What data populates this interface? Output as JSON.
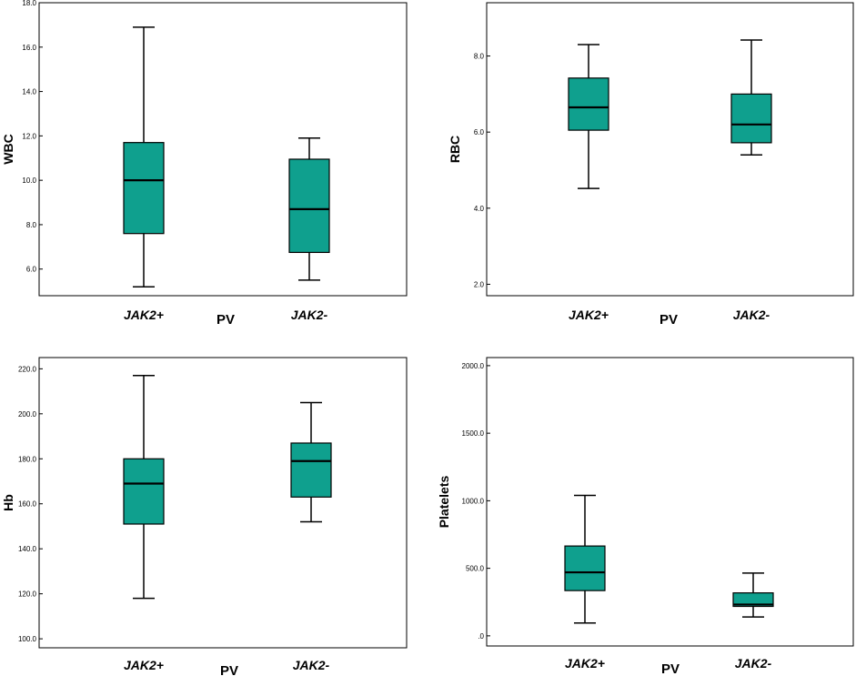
{
  "colors": {
    "box_fill": "#0fa08e",
    "stroke": "#000000",
    "background": "#ffffff"
  },
  "chart_data": [
    {
      "type": "boxplot",
      "title": "",
      "xlabel": "PV",
      "ylabel": "WBC",
      "categories": [
        "JAK2+",
        "JAK2-"
      ],
      "ylim": [
        4.8,
        18.0
      ],
      "yticks": [
        6.0,
        8.0,
        10.0,
        12.0,
        14.0,
        16.0,
        18.0
      ],
      "ytick_labels": [
        "6.0",
        "8.0",
        "10.0",
        "12.0",
        "14.0",
        "16.0",
        "18.0"
      ],
      "boxes": [
        {
          "min": 5.2,
          "q1": 7.6,
          "median": 10.0,
          "q3": 11.7,
          "max": 16.9
        },
        {
          "min": 5.5,
          "q1": 6.75,
          "median": 8.7,
          "q3": 10.95,
          "max": 11.9
        }
      ]
    },
    {
      "type": "boxplot",
      "title": "",
      "xlabel": "PV",
      "ylabel": "RBC",
      "categories": [
        "JAK2+",
        "JAK2-"
      ],
      "ylim": [
        1.7,
        9.4
      ],
      "yticks": [
        2.0,
        4.0,
        6.0,
        8.0
      ],
      "ytick_labels": [
        "2.0",
        "4.0",
        "6.0",
        "8.0"
      ],
      "boxes": [
        {
          "min": 4.52,
          "q1": 6.05,
          "median": 6.65,
          "q3": 7.42,
          "max": 8.3
        },
        {
          "min": 5.4,
          "q1": 5.72,
          "median": 6.2,
          "q3": 7.0,
          "max": 8.42
        }
      ]
    },
    {
      "type": "boxplot",
      "title": "",
      "xlabel": "PV",
      "ylabel": "Hb",
      "categories": [
        "JAK2+",
        "JAK2-"
      ],
      "ylim": [
        96,
        225
      ],
      "yticks": [
        100,
        120,
        140,
        160,
        180,
        200,
        220
      ],
      "ytick_labels": [
        "100.0",
        "120.0",
        "140.0",
        "160.0",
        "180.0",
        "200.0",
        "220.0"
      ],
      "boxes": [
        {
          "min": 118,
          "q1": 151,
          "median": 169,
          "q3": 180,
          "max": 217
        },
        {
          "min": 152,
          "q1": 163,
          "median": 179,
          "q3": 187,
          "max": 205
        }
      ]
    },
    {
      "type": "boxplot",
      "title": "",
      "xlabel": "PV",
      "ylabel": "Platelets",
      "categories": [
        "JAK2+",
        "JAK2-"
      ],
      "ylim": [
        -75,
        2060
      ],
      "yticks": [
        0,
        500,
        1000,
        1500,
        2000
      ],
      "ytick_labels": [
        ".0",
        "500.0",
        "1000.0",
        "1500.0",
        "2000.0"
      ],
      "boxes": [
        {
          "min": 95,
          "q1": 335,
          "median": 470,
          "q3": 665,
          "max": 1040
        },
        {
          "min": 140,
          "q1": 218,
          "median": 232,
          "q3": 318,
          "max": 465
        }
      ]
    }
  ]
}
